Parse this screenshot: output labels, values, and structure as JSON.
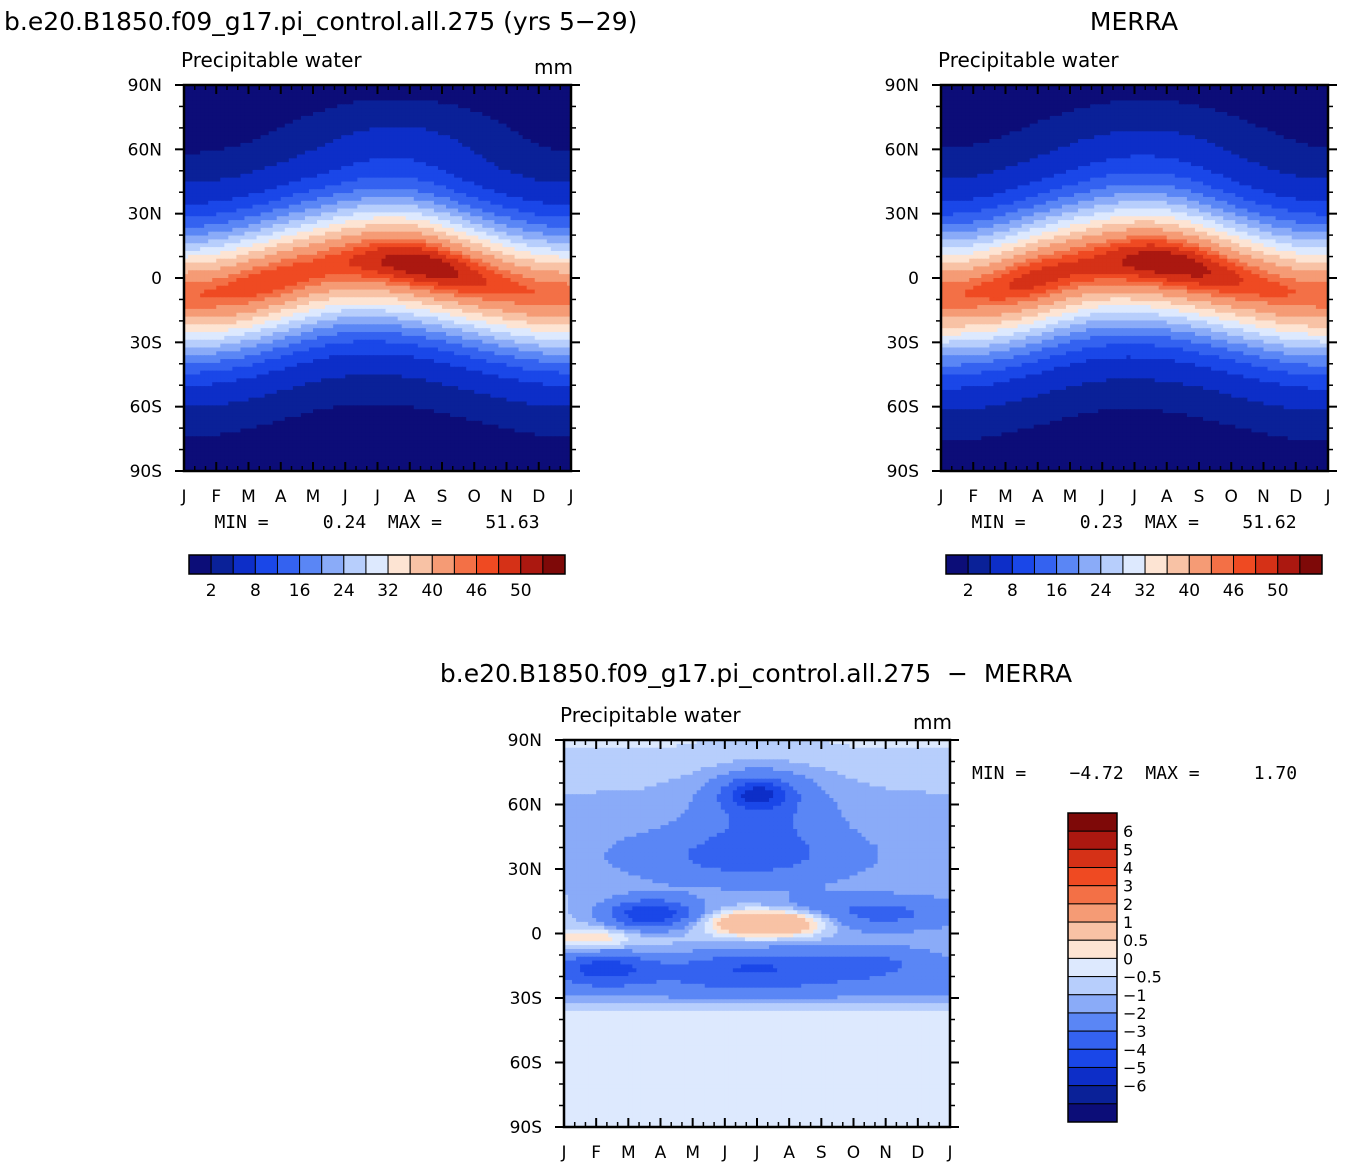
{
  "palettes": {
    "abs": [
      "#0c0d78",
      "#0a2198",
      "#0d2ec8",
      "#1a47e8",
      "#3462f0",
      "#5a86f5",
      "#8aabf8",
      "#b7cefc",
      "#dde9fe",
      "#fde4d3",
      "#f8c2a5",
      "#f59b75",
      "#f37046",
      "#ef4a22",
      "#d53117",
      "#ab1810",
      "#7e0908"
    ],
    "diff": [
      "#0c0d78",
      "#0a2198",
      "#0d2ec8",
      "#1a47e8",
      "#3462f0",
      "#5a86f5",
      "#8aabf8",
      "#b7cefc",
      "#dde9fe",
      "#fde4d3",
      "#f8c2a5",
      "#f59b75",
      "#f37046",
      "#ef4a22",
      "#d53117",
      "#ab1810",
      "#7e0908"
    ]
  },
  "chart_data": [
    {
      "type": "heatmap",
      "title": "b.e20.B1850.f09_g17.pi_control.all.275 (yrs 5−29)",
      "subtitle": "Precipitable water",
      "units": "mm",
      "xticklabels": [
        "J",
        "F",
        "M",
        "A",
        "M",
        "J",
        "J",
        "A",
        "S",
        "O",
        "N",
        "D",
        "J"
      ],
      "yticklabels": [
        "90N",
        "60N",
        "30N",
        "0",
        "30S",
        "60S",
        "90S"
      ],
      "ylim": [
        -90,
        90
      ],
      "minmax_label": "MIN =     0.24  MAX =    51.63",
      "min": 0.24,
      "max": 51.63,
      "levels": [
        2,
        4,
        8,
        12,
        16,
        20,
        24,
        28,
        32,
        36,
        40,
        44,
        46,
        48,
        50
      ],
      "colorbar_labels": [
        "2",
        "8",
        "16",
        "24",
        "32",
        "40",
        "46",
        "50"
      ],
      "field": "model"
    },
    {
      "type": "heatmap",
      "title": "MERRA",
      "subtitle": "Precipitable water",
      "units": "",
      "xticklabels": [
        "J",
        "F",
        "M",
        "A",
        "M",
        "J",
        "J",
        "A",
        "S",
        "O",
        "N",
        "D",
        "J"
      ],
      "yticklabels": [
        "90N",
        "60N",
        "30N",
        "0",
        "30S",
        "60S",
        "90S"
      ],
      "ylim": [
        -90,
        90
      ],
      "minmax_label": "MIN =     0.23  MAX =    51.62",
      "min": 0.23,
      "max": 51.62,
      "levels": [
        2,
        4,
        8,
        12,
        16,
        20,
        24,
        28,
        32,
        36,
        40,
        44,
        46,
        48,
        50
      ],
      "colorbar_labels": [
        "2",
        "8",
        "16",
        "24",
        "32",
        "40",
        "46",
        "50"
      ],
      "field": "obs"
    },
    {
      "type": "heatmap",
      "title": "b.e20.B1850.f09_g17.pi_control.all.275  −  MERRA",
      "subtitle": "Precipitable water",
      "units": "mm",
      "xticklabels": [
        "J",
        "F",
        "M",
        "A",
        "M",
        "J",
        "J",
        "A",
        "S",
        "O",
        "N",
        "D",
        "J"
      ],
      "yticklabels": [
        "90N",
        "60N",
        "30N",
        "0",
        "30S",
        "60S",
        "90S"
      ],
      "ylim": [
        -90,
        90
      ],
      "minmax_label": "MIN =    −4.72  MAX =     1.70",
      "min": -4.72,
      "max": 1.7,
      "levels": [
        -6,
        -5,
        -4,
        -3,
        -2,
        -1,
        -0.5,
        0,
        0.5,
        1,
        2,
        3,
        4,
        5,
        6
      ],
      "colorbar_labels": [
        "6",
        "5",
        "4",
        "3",
        "2",
        "1",
        "0.5",
        "0",
        "−0.5",
        "−1",
        "−2",
        "−3",
        "−4",
        "−5",
        "−6"
      ],
      "field": "diff"
    }
  ]
}
